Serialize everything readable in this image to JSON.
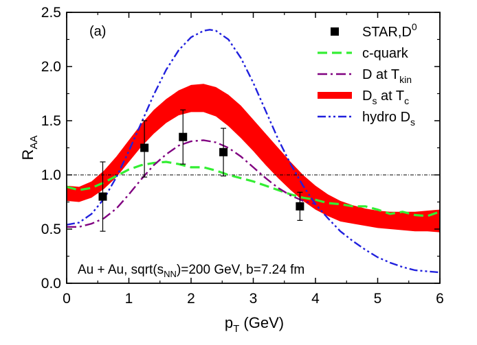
{
  "chart_data": {
    "type": "line",
    "panel_label": "(a)",
    "xlabel": {
      "main": "p",
      "sub": "T",
      "rest": " (GeV)"
    },
    "ylabel": {
      "main": "R",
      "sub": "AA"
    },
    "xlim": [
      0,
      6
    ],
    "ylim": [
      0,
      2.5
    ],
    "xticks": [
      "0",
      "1",
      "2",
      "3",
      "4",
      "5",
      "6"
    ],
    "yticks": [
      "0.0",
      "0.5",
      "1.0",
      "1.5",
      "2.0",
      "2.5"
    ],
    "grid": false,
    "legend_position": "top-right",
    "annotation": {
      "a": "Au + Au, sqrt(s",
      "sub": "NN",
      "b": ")=200 GeV, b=7.24 fm"
    },
    "reference_line": {
      "y": 1.0,
      "style": "dash-dot",
      "color": "#000000"
    },
    "series": [
      {
        "name": "STAR,D",
        "name_sup": "0",
        "name_sub": "",
        "kind": "points",
        "color": "#000000",
        "x": [
          0.58,
          1.25,
          1.87,
          2.52,
          3.75
        ],
        "y": [
          0.8,
          1.25,
          1.35,
          1.21,
          0.71
        ],
        "err_low": [
          0.32,
          0.27,
          0.25,
          0.22,
          0.13
        ],
        "err_high": [
          0.32,
          0.25,
          0.25,
          0.22,
          0.13
        ]
      },
      {
        "name": "c-quark",
        "name_sup": "",
        "name_sub": "",
        "kind": "line",
        "style": "dash",
        "color": "#33ee33",
        "x": [
          0.0,
          0.2,
          0.4,
          0.6,
          0.8,
          1.0,
          1.2,
          1.4,
          1.6,
          1.8,
          2.0,
          2.2,
          2.4,
          2.6,
          2.8,
          3.0,
          3.2,
          3.4,
          3.6,
          3.8,
          4.0,
          4.2,
          4.4,
          4.6,
          4.8,
          5.0,
          5.2,
          5.4,
          5.6,
          5.8,
          6.0
        ],
        "y": [
          0.89,
          0.86,
          0.88,
          0.93,
          0.99,
          1.05,
          1.09,
          1.11,
          1.12,
          1.1,
          1.07,
          1.07,
          1.04,
          1.0,
          0.97,
          0.94,
          0.9,
          0.86,
          0.82,
          0.79,
          0.77,
          0.74,
          0.73,
          0.71,
          0.71,
          0.68,
          0.64,
          0.66,
          0.63,
          0.62,
          0.66
        ]
      },
      {
        "name": "D at T",
        "name_sup": "",
        "name_sub": "kin",
        "kind": "line",
        "style": "dash-dot",
        "color": "#800080",
        "x": [
          0.0,
          0.2,
          0.4,
          0.6,
          0.8,
          1.0,
          1.2,
          1.4,
          1.6,
          1.8,
          2.0,
          2.2,
          2.4,
          2.6,
          2.8,
          3.0,
          3.2,
          3.4,
          3.6,
          3.8,
          4.0
        ],
        "y": [
          0.52,
          0.52,
          0.55,
          0.6,
          0.69,
          0.82,
          0.96,
          1.09,
          1.19,
          1.27,
          1.31,
          1.32,
          1.3,
          1.25,
          1.17,
          1.07,
          0.97,
          0.88,
          0.81,
          0.76,
          0.73
        ]
      },
      {
        "name": "D",
        "name_sup": "",
        "name_sub": "s",
        "name_suffix": " at T",
        "name_suffix_sub": "c",
        "kind": "band",
        "color": "#ff0000",
        "x": [
          0.0,
          0.2,
          0.4,
          0.6,
          0.8,
          1.0,
          1.2,
          1.4,
          1.6,
          1.8,
          2.0,
          2.2,
          2.4,
          2.6,
          2.8,
          3.0,
          3.2,
          3.4,
          3.6,
          3.8,
          4.0,
          4.2,
          4.4,
          4.6,
          4.8,
          5.0,
          5.2,
          5.4,
          5.6,
          5.8,
          6.0
        ],
        "y_low": [
          0.76,
          0.75,
          0.79,
          0.87,
          0.98,
          1.12,
          1.26,
          1.38,
          1.48,
          1.55,
          1.58,
          1.58,
          1.54,
          1.45,
          1.34,
          1.22,
          1.09,
          0.97,
          0.86,
          0.76,
          0.68,
          0.62,
          0.57,
          0.55,
          0.53,
          0.51,
          0.5,
          0.49,
          0.48,
          0.48,
          0.47
        ],
        "y_high": [
          0.9,
          0.89,
          0.94,
          1.04,
          1.17,
          1.32,
          1.47,
          1.6,
          1.7,
          1.78,
          1.83,
          1.84,
          1.81,
          1.74,
          1.64,
          1.51,
          1.38,
          1.25,
          1.12,
          1.0,
          0.9,
          0.82,
          0.76,
          0.72,
          0.69,
          0.67,
          0.66,
          0.66,
          0.66,
          0.67,
          0.68
        ]
      },
      {
        "name": "hydro D",
        "name_sup": "",
        "name_sub": "s",
        "kind": "line",
        "style": "dash-dot-dot",
        "color": "#2020dd",
        "x": [
          0.0,
          0.2,
          0.4,
          0.6,
          0.8,
          1.0,
          1.2,
          1.4,
          1.6,
          1.8,
          2.0,
          2.2,
          2.3,
          2.4,
          2.6,
          2.8,
          3.0,
          3.2,
          3.4,
          3.6,
          3.8,
          4.0,
          4.2,
          4.4,
          4.6,
          4.8,
          5.0,
          5.2,
          5.4,
          5.6,
          5.8,
          6.0
        ],
        "y": [
          0.54,
          0.56,
          0.64,
          0.78,
          0.98,
          1.22,
          1.48,
          1.74,
          1.97,
          2.15,
          2.27,
          2.33,
          2.34,
          2.33,
          2.25,
          2.08,
          1.85,
          1.59,
          1.33,
          1.1,
          0.9,
          0.73,
          0.6,
          0.48,
          0.39,
          0.31,
          0.24,
          0.19,
          0.15,
          0.12,
          0.11,
          0.1
        ]
      }
    ]
  }
}
